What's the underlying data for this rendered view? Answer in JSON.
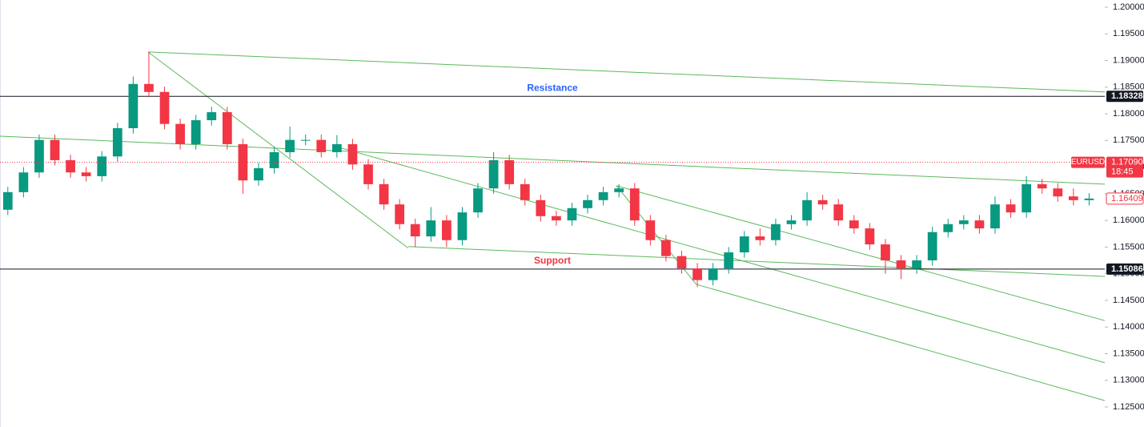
{
  "chart_data": {
    "type": "candlestick",
    "open": [
      1.162,
      1.1653,
      1.169,
      1.1751,
      1.1713,
      1.169,
      1.1683,
      1.172,
      1.1773,
      1.1856,
      1.1841,
      1.1781,
      1.1743,
      1.1788,
      1.1803,
      1.1743,
      1.1675,
      1.1698,
      1.1728,
      1.1751,
      1.1751,
      1.1728,
      1.1743,
      1.1705,
      1.1668,
      1.163,
      1.1593,
      1.157,
      1.16,
      1.1563,
      1.1615,
      1.166,
      1.1713,
      1.1668,
      1.1638,
      1.1608,
      1.16,
      1.1623,
      1.1638,
      1.1653,
      1.166,
      1.16,
      1.1563,
      1.1533,
      1.151,
      1.1488,
      1.151,
      1.154,
      1.157,
      1.1563,
      1.1593,
      1.16,
      1.1638,
      1.163,
      1.16,
      1.1585,
      1.1555,
      1.1525,
      1.151,
      1.1525,
      1.1578,
      1.1593,
      1.16,
      1.1585,
      1.163,
      1.1615,
      1.1668,
      1.166,
      1.1645,
      1.1638
    ],
    "high": [
      1.1663,
      1.17,
      1.1761,
      1.1761,
      1.1723,
      1.17,
      1.173,
      1.1783,
      1.187,
      1.1916,
      1.1851,
      1.1791,
      1.1798,
      1.1813,
      1.1813,
      1.1753,
      1.1708,
      1.1738,
      1.1776,
      1.1761,
      1.1761,
      1.176,
      1.1753,
      1.1715,
      1.1678,
      1.164,
      1.1603,
      1.1625,
      1.161,
      1.1625,
      1.167,
      1.1728,
      1.1723,
      1.1678,
      1.1648,
      1.1618,
      1.1633,
      1.1648,
      1.1663,
      1.1668,
      1.167,
      1.161,
      1.1573,
      1.1543,
      1.152,
      1.152,
      1.155,
      1.158,
      1.1585,
      1.1603,
      1.161,
      1.1653,
      1.1648,
      1.164,
      1.161,
      1.1595,
      1.1565,
      1.1535,
      1.1535,
      1.1588,
      1.1603,
      1.161,
      1.161,
      1.1645,
      1.164,
      1.1683,
      1.1678,
      1.167,
      1.166,
      1.1651
    ],
    "low": [
      1.161,
      1.1643,
      1.168,
      1.1703,
      1.168,
      1.1673,
      1.1673,
      1.171,
      1.1763,
      1.1831,
      1.1771,
      1.1733,
      1.1733,
      1.1778,
      1.1733,
      1.165,
      1.1665,
      1.1688,
      1.1718,
      1.1741,
      1.1718,
      1.1718,
      1.1695,
      1.1658,
      1.162,
      1.1583,
      1.155,
      1.156,
      1.155,
      1.1553,
      1.1605,
      1.165,
      1.1658,
      1.1628,
      1.1598,
      1.159,
      1.159,
      1.1613,
      1.1628,
      1.1643,
      1.159,
      1.1553,
      1.1523,
      1.15,
      1.1475,
      1.1478,
      1.15,
      1.153,
      1.1553,
      1.1553,
      1.1583,
      1.159,
      1.162,
      1.159,
      1.1575,
      1.1545,
      1.15,
      1.149,
      1.15,
      1.1515,
      1.1568,
      1.1583,
      1.1575,
      1.1575,
      1.1605,
      1.1605,
      1.165,
      1.1635,
      1.1628,
      1.1628
    ],
    "close": [
      1.1653,
      1.169,
      1.1751,
      1.1713,
      1.169,
      1.1683,
      1.172,
      1.1773,
      1.1856,
      1.1841,
      1.1781,
      1.1743,
      1.1788,
      1.1803,
      1.1743,
      1.1675,
      1.1698,
      1.1728,
      1.1751,
      1.1751,
      1.1728,
      1.1743,
      1.1705,
      1.1668,
      1.163,
      1.1593,
      1.157,
      1.16,
      1.1563,
      1.1615,
      1.166,
      1.1713,
      1.1668,
      1.1638,
      1.1608,
      1.16,
      1.1623,
      1.1638,
      1.1653,
      1.166,
      1.16,
      1.1563,
      1.1533,
      1.151,
      1.1488,
      1.151,
      1.154,
      1.157,
      1.1563,
      1.1593,
      1.16,
      1.1638,
      1.163,
      1.16,
      1.1585,
      1.1555,
      1.1525,
      1.151,
      1.1525,
      1.1578,
      1.1593,
      1.16,
      1.1585,
      1.163,
      1.1615,
      1.1668,
      1.166,
      1.1645,
      1.1638,
      1.1641
    ],
    "up_color": "#089981",
    "down_color": "#f23645",
    "xlim": [
      -0.5,
      70
    ],
    "ylim": [
      1.12124,
      1.20135
    ],
    "yticks": [
      {
        "value": 1.125,
        "label": "1.12500"
      },
      {
        "value": 1.13,
        "label": "1.13000"
      },
      {
        "value": 1.135,
        "label": "1.13500"
      },
      {
        "value": 1.14,
        "label": "1.14000"
      },
      {
        "value": 1.145,
        "label": "1.14500"
      },
      {
        "value": 1.15,
        "label": "1.15000"
      },
      {
        "value": 1.155,
        "label": "1.15500"
      },
      {
        "value": 1.16,
        "label": "1.16000"
      },
      {
        "value": 1.165,
        "label": "1.16500"
      },
      {
        "value": 1.17,
        "label": "1.17000"
      },
      {
        "value": 1.175,
        "label": "1.17500"
      },
      {
        "value": 1.18,
        "label": "1.18000"
      },
      {
        "value": 1.185,
        "label": "1.18500"
      },
      {
        "value": 1.19,
        "label": "1.19000"
      },
      {
        "value": 1.195,
        "label": "1.19500"
      },
      {
        "value": 1.2,
        "label": "1.20000"
      }
    ],
    "trendline_color": "#5cb85c",
    "trendlines": [
      {
        "x": [
          8.95,
          70
        ],
        "y": [
          1.1916,
          1.1841
        ]
      },
      {
        "x": [
          8.95,
          25.55
        ],
        "y": [
          1.1916,
          1.1548
        ]
      },
      {
        "x": [
          -0.5,
          70
        ],
        "y": [
          1.1758,
          1.1668
        ]
      },
      {
        "x": [
          21.0,
          70
        ],
        "y": [
          1.1738,
          1.1333
        ]
      },
      {
        "x": [
          25.55,
          70
        ],
        "y": [
          1.1551,
          1.1495
        ]
      },
      {
        "x": [
          38.84,
          70
        ],
        "y": [
          1.1665,
          1.1412
        ]
      },
      {
        "x": [
          38.84,
          43.93
        ],
        "y": [
          1.1665,
          1.148
        ]
      },
      {
        "x": [
          43.93,
          70
        ],
        "y": [
          1.148,
          1.1262
        ]
      }
    ],
    "levels": [
      {
        "name": "Resistance",
        "value": 1.18328,
        "label": "1.18328",
        "label_color": "#2962ff"
      },
      {
        "name": "Support",
        "value": 1.15086,
        "label": "1.15086",
        "label_color": "#f23645"
      }
    ],
    "symbol": "EURUSD",
    "last_price": {
      "value": 1.1709,
      "label": "1.17090"
    },
    "countdown": "18:45",
    "current_price": {
      "value": 1.16409,
      "label": "1.16409"
    }
  }
}
